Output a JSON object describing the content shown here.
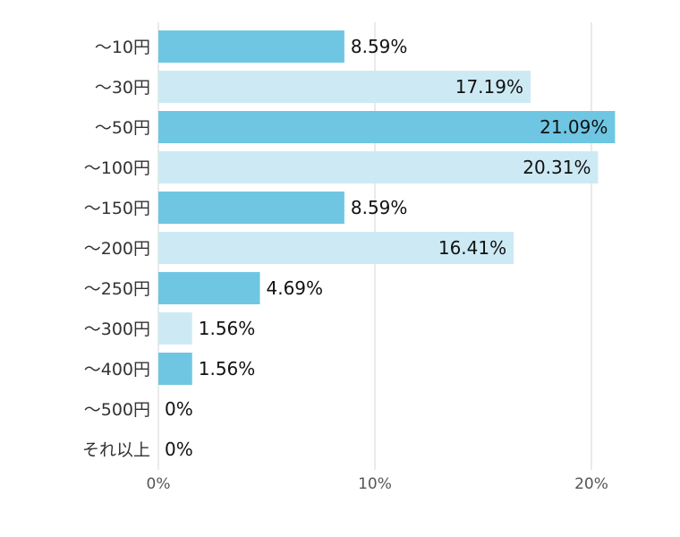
{
  "chart_data": {
    "type": "bar",
    "orientation": "horizontal",
    "categories": [
      "～10円",
      "～30円",
      "～50円",
      "～100円",
      "～150円",
      "～200円",
      "～250円",
      "～300円",
      "～400円",
      "～500円",
      "それ以上"
    ],
    "values": [
      8.59,
      17.19,
      21.09,
      20.31,
      8.59,
      16.41,
      4.69,
      1.56,
      1.56,
      0,
      0
    ],
    "value_labels": [
      "8.59%",
      "17.19%",
      "21.09%",
      "20.31%",
      "8.59%",
      "16.41%",
      "4.69%",
      "1.56%",
      "1.56%",
      "0%",
      "0%"
    ],
    "xlim": [
      0,
      21.09
    ],
    "xticks": [
      0,
      10,
      20
    ],
    "xtick_labels": [
      "0%",
      "10%",
      "20%"
    ],
    "grid": true,
    "legend": "none",
    "colors": [
      "#6ec6e3",
      "#cdeaf4"
    ]
  }
}
